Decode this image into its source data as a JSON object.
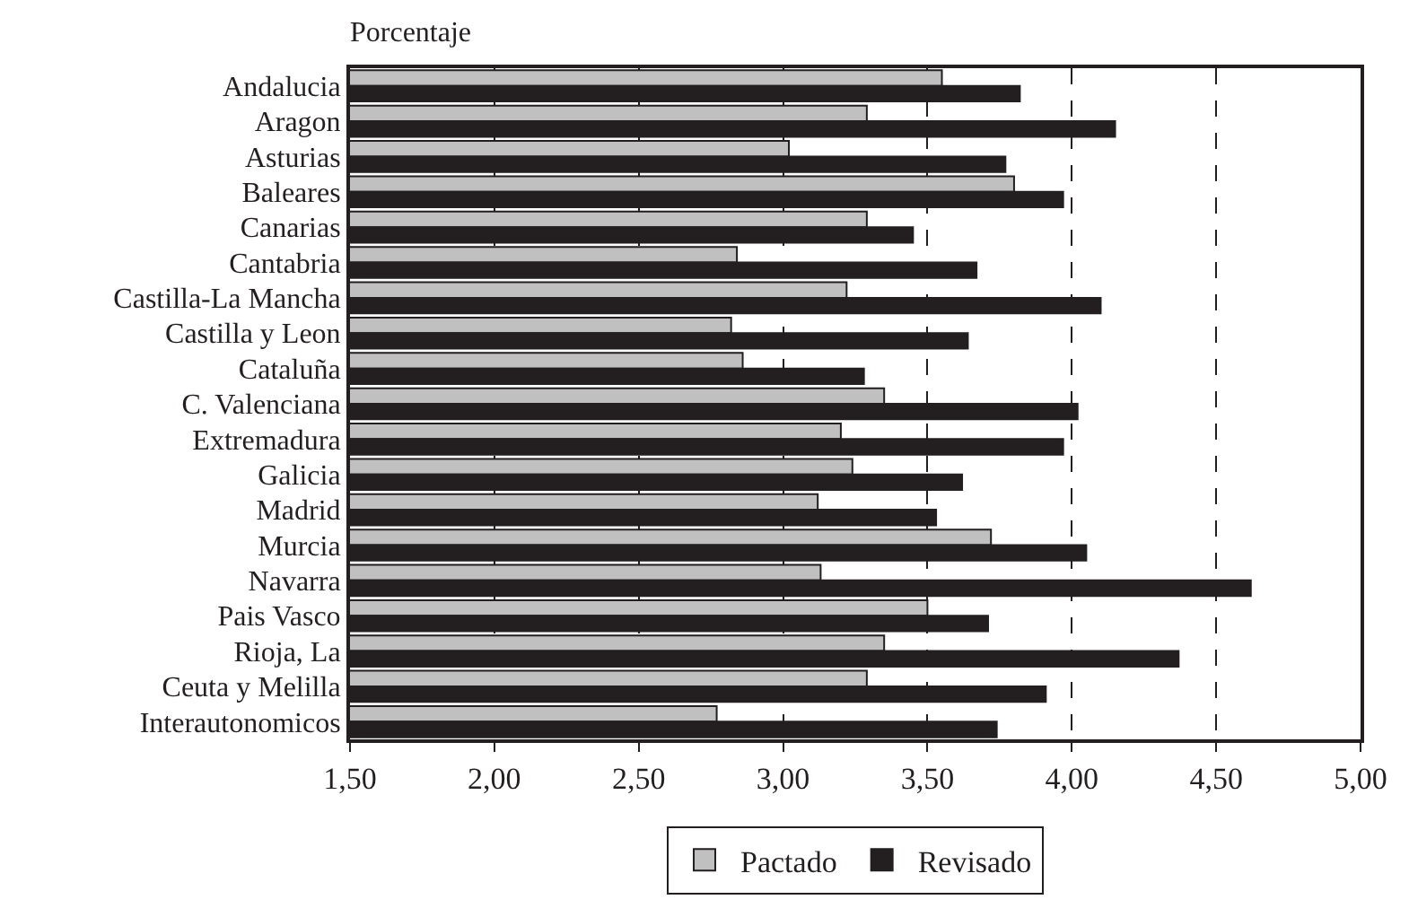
{
  "chart_data": {
    "type": "bar",
    "orientation": "horizontal",
    "title": "Porcentaje",
    "categories": [
      "Andalucia",
      "Aragon",
      "Asturias",
      "Baleares",
      "Canarias",
      "Cantabria",
      "Castilla-La Mancha",
      "Castilla y Leon",
      "Cataluña",
      "C. Valenciana",
      "Extremadura",
      "Galicia",
      "Madrid",
      "Murcia",
      "Navarra",
      "Pais Vasco",
      "Rioja, La",
      "Ceuta y Melilla",
      "Interautonomicos"
    ],
    "series": [
      {
        "name": "Pactado",
        "color": "#c0c0c0",
        "values": [
          3.55,
          3.29,
          3.02,
          3.8,
          3.29,
          2.84,
          3.22,
          2.82,
          2.86,
          3.35,
          3.2,
          3.24,
          3.12,
          3.72,
          3.13,
          3.5,
          3.35,
          3.29,
          2.77
        ]
      },
      {
        "name": "Revisado",
        "color": "#231f20",
        "values": [
          3.82,
          4.15,
          3.77,
          3.97,
          3.45,
          3.67,
          4.1,
          3.64,
          3.28,
          4.02,
          3.97,
          3.62,
          3.53,
          4.05,
          4.62,
          3.71,
          4.37,
          3.91,
          3.74
        ]
      }
    ],
    "xlim": [
      1.5,
      5.0
    ],
    "xticks": [
      {
        "value": 1.5,
        "label": "1,50"
      },
      {
        "value": 2.0,
        "label": "2,00"
      },
      {
        "value": 2.5,
        "label": "2,50"
      },
      {
        "value": 3.0,
        "label": "3,00"
      },
      {
        "value": 3.5,
        "label": "3,50"
      },
      {
        "value": 4.0,
        "label": "4,00"
      },
      {
        "value": 4.5,
        "label": "4,50"
      },
      {
        "value": 5.0,
        "label": "5,00"
      }
    ],
    "grid": "x",
    "legend": "bottom"
  }
}
